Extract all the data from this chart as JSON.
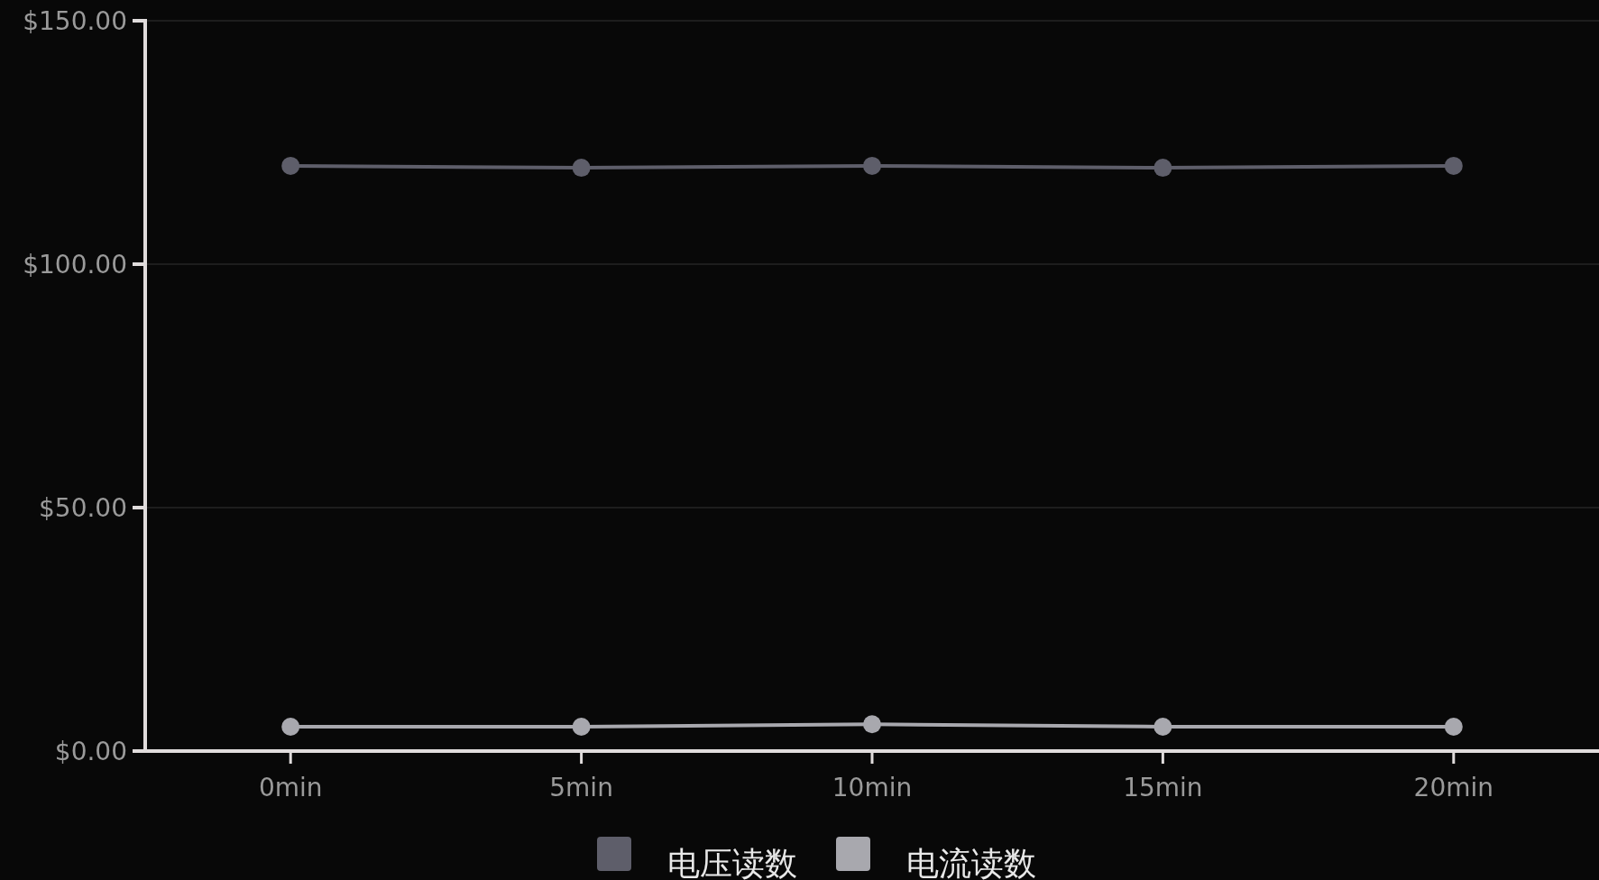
{
  "chart_data": {
    "type": "line",
    "categories": [
      "0min",
      "5min",
      "10min",
      "15min",
      "20min"
    ],
    "series": [
      {
        "name": "电压读数",
        "color": "#5e5e6a",
        "values": [
          120.2,
          119.8,
          120.2,
          119.8,
          120.2
        ]
      },
      {
        "name": "电流读数",
        "color": "#a8a8ae",
        "values": [
          5,
          5,
          5.5,
          5,
          5
        ]
      }
    ],
    "ylim": [
      0,
      150
    ],
    "yticks": [
      {
        "value": 0,
        "label": "$0.00"
      },
      {
        "value": 50,
        "label": "$50.00"
      },
      {
        "value": 100,
        "label": "$100.00"
      },
      {
        "value": 150,
        "label": "$150.00"
      }
    ],
    "grid": "y",
    "legend": "bottom",
    "marker": "circle",
    "line_style": "solid"
  }
}
